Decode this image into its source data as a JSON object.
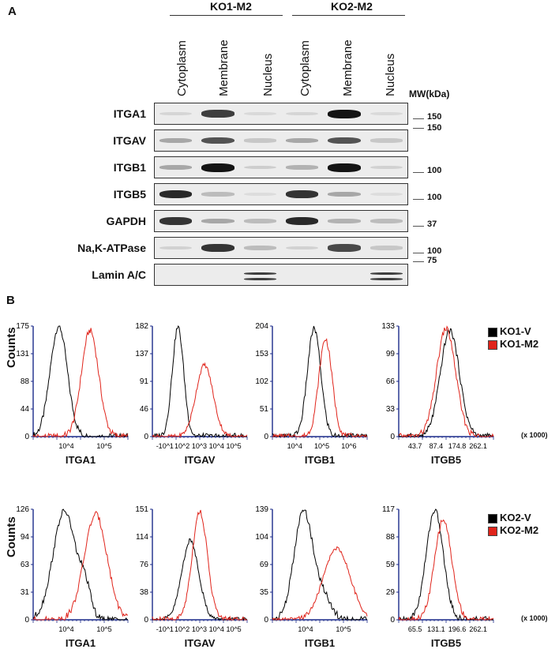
{
  "panel_a": {
    "letter": "A",
    "groups": [
      "KO1-M2",
      "KO2-M2"
    ],
    "columns": [
      "Cytoplasm",
      "Membrane",
      "Nucleus",
      "Cytoplasm",
      "Membrane",
      "Nucleus"
    ],
    "mw_header": "MW(kDa)",
    "rows": [
      {
        "label": "ITGA1",
        "mw": [
          "150"
        ],
        "bands": [
          0.08,
          0.8,
          0.06,
          0.08,
          1.0,
          0.06
        ]
      },
      {
        "label": "ITGAV",
        "mw": [
          "150"
        ],
        "bands": [
          0.3,
          0.7,
          0.15,
          0.3,
          0.7,
          0.15
        ]
      },
      {
        "label": "ITGB1",
        "mw": [
          "100"
        ],
        "bands": [
          0.3,
          1.0,
          0.12,
          0.25,
          1.0,
          0.1
        ]
      },
      {
        "label": "ITGB5",
        "mw": [
          "100"
        ],
        "bands": [
          0.9,
          0.2,
          0.05,
          0.85,
          0.3,
          0.05
        ]
      },
      {
        "label": "GAPDH",
        "mw": [
          "37"
        ],
        "bands": [
          0.85,
          0.3,
          0.2,
          0.9,
          0.25,
          0.2
        ]
      },
      {
        "label": "Na,K-ATPase",
        "mw": [
          "100"
        ],
        "bands": [
          0.1,
          0.85,
          0.2,
          0.1,
          0.75,
          0.15
        ]
      },
      {
        "label": "Lamin A/C",
        "mw": [
          "75"
        ],
        "bands": [
          0.0,
          0.0,
          0.8,
          0.0,
          0.0,
          0.8
        ]
      }
    ]
  },
  "panel_b": {
    "letter": "B",
    "ylabel": "Counts",
    "legends": [
      {
        "items": [
          {
            "name": "KO1-V",
            "color": "#000000"
          },
          {
            "name": "KO1-M2",
            "color": "#e0241b"
          }
        ]
      },
      {
        "items": [
          {
            "name": "KO2-V",
            "color": "#000000"
          },
          {
            "name": "KO2-M2",
            "color": "#e0241b"
          }
        ]
      }
    ],
    "x1000": "(x 1000)"
  },
  "chart_data": [
    {
      "type": "line",
      "xlabel": "ITGA1",
      "yticks": [
        "175",
        "131",
        "88",
        "44",
        "0"
      ],
      "xticks": [
        "10^4",
        "10^5"
      ],
      "ylim": [
        0,
        175
      ],
      "series": [
        {
          "name": "KO1-V",
          "color": "#000000",
          "peak": 0.27,
          "width": 0.09,
          "height": 175
        },
        {
          "name": "KO1-M2",
          "color": "#e0241b",
          "peak": 0.6,
          "width": 0.09,
          "height": 168
        }
      ]
    },
    {
      "type": "line",
      "xlabel": "ITGAV",
      "yticks": [
        "182",
        "137",
        "91",
        "46",
        "0"
      ],
      "xticks": [
        "-10^1",
        "10^2",
        "10^3",
        "10^4",
        "10^5"
      ],
      "ylim": [
        0,
        182
      ],
      "series": [
        {
          "name": "KO1-V",
          "color": "#000000",
          "peak": 0.27,
          "width": 0.06,
          "height": 180
        },
        {
          "name": "KO1-M2",
          "color": "#e0241b",
          "peak": 0.55,
          "width": 0.09,
          "height": 118
        }
      ]
    },
    {
      "type": "line",
      "xlabel": "ITGB1",
      "yticks": [
        "204",
        "153",
        "102",
        "51",
        "0"
      ],
      "xticks": [
        "10^4",
        "10^5",
        "10^6"
      ],
      "ylim": [
        0,
        204
      ],
      "series": [
        {
          "name": "KO1-V",
          "color": "#000000",
          "peak": 0.44,
          "width": 0.07,
          "height": 200
        },
        {
          "name": "KO1-M2",
          "color": "#e0241b",
          "peak": 0.56,
          "width": 0.07,
          "height": 180
        }
      ]
    },
    {
      "type": "line",
      "xlabel": "ITGB5",
      "yticks": [
        "133",
        "99",
        "66",
        "33",
        "0"
      ],
      "xticks": [
        "43.7",
        "87.4",
        "174.8",
        "262.1"
      ],
      "ylim": [
        0,
        133
      ],
      "series": [
        {
          "name": "KO1-V",
          "color": "#000000",
          "peak": 0.54,
          "width": 0.1,
          "height": 128
        },
        {
          "name": "KO1-M2",
          "color": "#e0241b",
          "peak": 0.5,
          "width": 0.1,
          "height": 130
        }
      ]
    },
    {
      "type": "line",
      "xlabel": "ITGA1",
      "yticks": [
        "126",
        "94",
        "63",
        "31",
        "0"
      ],
      "xticks": [
        "10^4",
        "10^5"
      ],
      "ylim": [
        0,
        126
      ],
      "series": [
        {
          "name": "KO2-V",
          "color": "#000000",
          "peak": 0.33,
          "width": 0.12,
          "height": 124
        },
        {
          "name": "KO2-M2",
          "color": "#e0241b",
          "peak": 0.66,
          "width": 0.12,
          "height": 120
        }
      ]
    },
    {
      "type": "line",
      "xlabel": "ITGAV",
      "yticks": [
        "151",
        "114",
        "76",
        "38",
        "0"
      ],
      "xticks": [
        "-10^1",
        "10^2",
        "10^3",
        "10^4",
        "10^5"
      ],
      "ylim": [
        0,
        151
      ],
      "series": [
        {
          "name": "KO2-V",
          "color": "#000000",
          "peak": 0.4,
          "width": 0.09,
          "height": 108
        },
        {
          "name": "KO2-M2",
          "color": "#e0241b",
          "peak": 0.5,
          "width": 0.08,
          "height": 148
        }
      ]
    },
    {
      "type": "line",
      "xlabel": "ITGB1",
      "yticks": [
        "139",
        "104",
        "69",
        "35",
        "0"
      ],
      "xticks": [
        "10^4",
        "10^5"
      ],
      "ylim": [
        0,
        139
      ],
      "series": [
        {
          "name": "KO2-V",
          "color": "#000000",
          "peak": 0.33,
          "width": 0.1,
          "height": 137
        },
        {
          "name": "KO2-M2",
          "color": "#e0241b",
          "peak": 0.68,
          "width": 0.14,
          "height": 90
        }
      ]
    },
    {
      "type": "line",
      "xlabel": "ITGB5",
      "yticks": [
        "117",
        "88",
        "59",
        "29",
        "0"
      ],
      "xticks": [
        "65.5",
        "131.1",
        "196.6",
        "262.1"
      ],
      "ylim": [
        0,
        117
      ],
      "series": [
        {
          "name": "KO2-V",
          "color": "#000000",
          "peak": 0.38,
          "width": 0.09,
          "height": 116
        },
        {
          "name": "KO2-M2",
          "color": "#e0241b",
          "peak": 0.47,
          "width": 0.09,
          "height": 106
        }
      ]
    }
  ]
}
